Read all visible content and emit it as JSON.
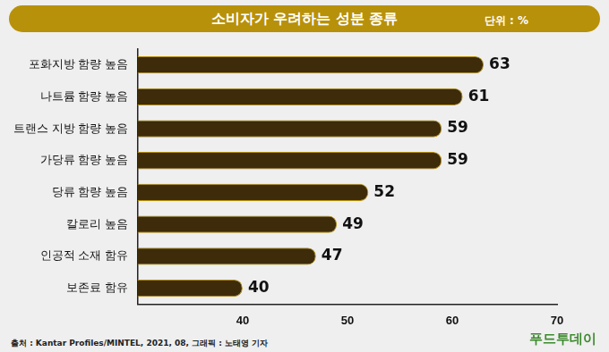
{
  "chart_data": {
    "type": "bar",
    "title": "소비자가 우려하는 성분 종류",
    "subtitle": "단위 : %",
    "annotations": [
      "출처 : Kantar Profiles/MINTEL, 2021, 08,   그래픽 : 노태영 기자",
      "푸드투데이"
    ],
    "categories": [
      "포화지방 함량 높음",
      "나트륨 함량 높음",
      "트랜스 지방 함량 높음",
      "가당류 함량 높음",
      "당류 함량 높음",
      "칼로리 높음",
      "인공적 소재 함유",
      "보존료 함유"
    ],
    "values": [
      63,
      61,
      59,
      59,
      52,
      49,
      47,
      40
    ],
    "color": "#3d2b0a",
    "orientation": "horizontal",
    "xlim": [
      30,
      70
    ],
    "xticks": [
      40,
      50,
      60,
      70
    ],
    "grid": false,
    "data_labels": true
  }
}
